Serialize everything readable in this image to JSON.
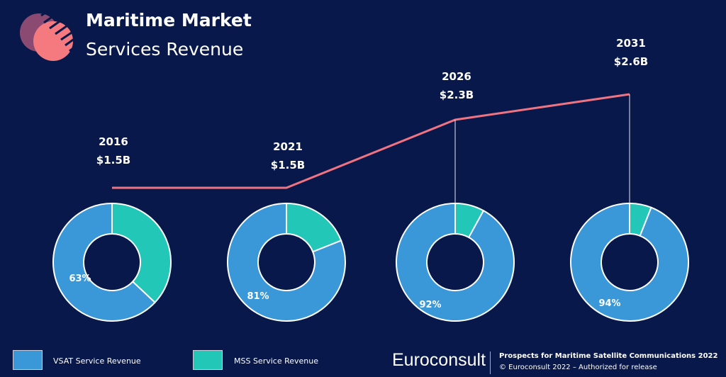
{
  "header": {
    "title_line1": "Maritime Market",
    "title_line2": "Services Revenue"
  },
  "chart_data": {
    "type": "line+donut",
    "line": {
      "categories": [
        "2016",
        "2021",
        "2026",
        "2031"
      ],
      "values": [
        1.5,
        1.5,
        2.3,
        2.6
      ],
      "value_labels": [
        "$1.5B",
        "$1.5B",
        "$2.3B",
        "$2.6B"
      ],
      "unit": "B USD",
      "color": "#f07382"
    },
    "donuts": [
      {
        "year": "2016",
        "vsat": 63,
        "mss": 37,
        "label": "63%"
      },
      {
        "year": "2021",
        "vsat": 81,
        "mss": 19,
        "label": "81%"
      },
      {
        "year": "2026",
        "vsat": 92,
        "mss": 8,
        "label": "92%"
      },
      {
        "year": "2031",
        "vsat": 94,
        "mss": 6,
        "label": "94%"
      }
    ],
    "legend": [
      {
        "name": "VSAT Service Revenue",
        "color": "#3a97d8"
      },
      {
        "name": "MSS Service Revenue",
        "color": "#22c7b8"
      }
    ]
  },
  "footer": {
    "brand": "Euroconsult",
    "line1": "Prospects for Maritime Satellite Communications 2022",
    "line2": "© Euroconsult 2022 – Authorized for release"
  }
}
